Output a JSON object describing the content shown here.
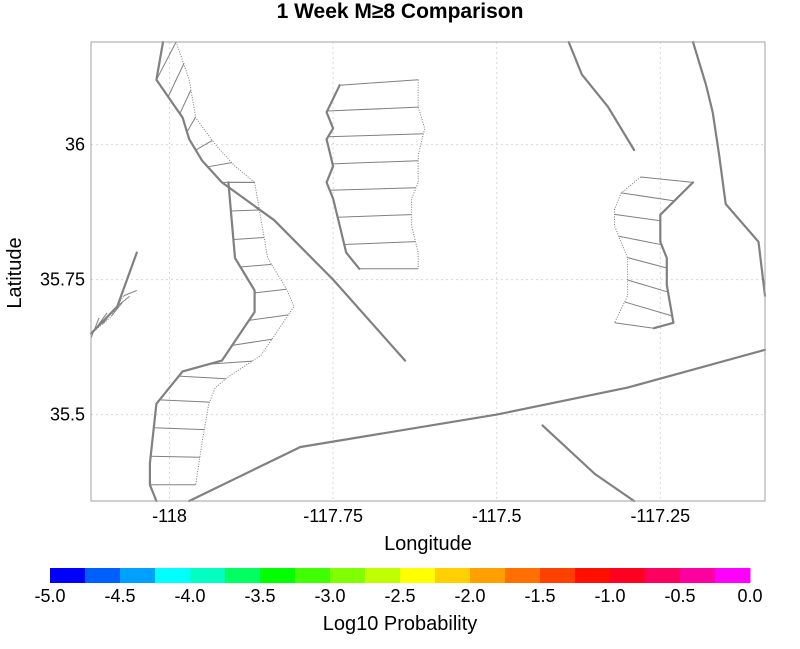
{
  "chart_data": {
    "type": "map",
    "title": "1 Week M≥8 Comparison",
    "xlabel": "Longitude",
    "ylabel": "Latitude",
    "xlim": [
      -118.12,
      -117.09
    ],
    "ylim": [
      35.34,
      36.19
    ],
    "xticks": [
      {
        "value": -118,
        "label": "-118"
      },
      {
        "value": -117.75,
        "label": "-117.75"
      },
      {
        "value": -117.5,
        "label": "-117.5"
      },
      {
        "value": -117.25,
        "label": "-117.25"
      }
    ],
    "yticks": [
      {
        "value": 35.5,
        "label": "35.5"
      },
      {
        "value": 35.75,
        "label": "35.75"
      },
      {
        "value": 36,
        "label": "36"
      }
    ],
    "grid": true,
    "colorbar": {
      "label": "Log10 Probability",
      "min": -5.0,
      "max": 0.0,
      "ticks": [
        "-5.0",
        "-4.5",
        "-4.0",
        "-3.5",
        "-3.0",
        "-2.5",
        "-2.0",
        "-1.5",
        "-1.0",
        "-0.5",
        "0.0"
      ],
      "colors": [
        "#0000ff",
        "#0060ff",
        "#00a0ff",
        "#00ffff",
        "#00ffc0",
        "#00ff60",
        "#00ff00",
        "#40ff00",
        "#80ff00",
        "#c0ff00",
        "#ffff00",
        "#ffd000",
        "#ffa000",
        "#ff7000",
        "#ff4000",
        "#ff1000",
        "#ff0020",
        "#ff0060",
        "#ff00a0",
        "#ff00ff"
      ]
    },
    "fault_traces": [
      {
        "name": "trace-1",
        "points": [
          [
            -118.01,
            36.19
          ],
          [
            -118.02,
            36.12
          ],
          [
            -117.98,
            36.05
          ],
          [
            -117.97,
            36.01
          ],
          [
            -117.95,
            35.97
          ],
          [
            -117.92,
            35.93
          ],
          [
            -117.84,
            35.86
          ],
          [
            -117.75,
            35.75
          ],
          [
            -117.64,
            35.6
          ]
        ]
      },
      {
        "name": "trace-2",
        "points": [
          [
            -117.91,
            35.93
          ],
          [
            -117.9,
            35.79
          ],
          [
            -117.87,
            35.73
          ],
          [
            -117.87,
            35.69
          ],
          [
            -117.92,
            35.6
          ],
          [
            -117.98,
            35.58
          ],
          [
            -118.0,
            35.55
          ],
          [
            -118.02,
            35.52
          ],
          [
            -118.03,
            35.41
          ],
          [
            -118.03,
            35.37
          ],
          [
            -118.02,
            35.34
          ]
        ]
      },
      {
        "name": "trace-3",
        "points": [
          [
            -117.74,
            36.11
          ],
          [
            -117.76,
            36.06
          ],
          [
            -117.75,
            36.03
          ],
          [
            -117.76,
            36.01
          ],
          [
            -117.75,
            35.96
          ],
          [
            -117.76,
            35.93
          ],
          [
            -117.75,
            35.9
          ],
          [
            -117.74,
            35.85
          ],
          [
            -117.73,
            35.8
          ],
          [
            -117.71,
            35.77
          ]
        ]
      },
      {
        "name": "trace-4",
        "points": [
          [
            -117.39,
            36.19
          ],
          [
            -117.37,
            36.13
          ],
          [
            -117.33,
            36.07
          ],
          [
            -117.29,
            35.99
          ]
        ]
      },
      {
        "name": "trace-5",
        "points": [
          [
            -117.2,
            36.19
          ],
          [
            -117.18,
            36.11
          ],
          [
            -117.17,
            36.06
          ],
          [
            -117.16,
            35.98
          ],
          [
            -117.15,
            35.89
          ],
          [
            -117.1,
            35.82
          ],
          [
            -117.05,
            35.72
          ]
        ]
      },
      {
        "name": "trace-6",
        "points": [
          [
            -117.2,
            35.93
          ],
          [
            -117.25,
            35.87
          ],
          [
            -117.25,
            35.82
          ],
          [
            -117.24,
            35.79
          ],
          [
            -117.24,
            35.74
          ],
          [
            -117.23,
            35.67
          ],
          [
            -117.26,
            35.66
          ]
        ]
      },
      {
        "name": "trace-7",
        "points": [
          [
            -117.05,
            35.62
          ],
          [
            -117.3,
            35.55
          ],
          [
            -117.5,
            35.5
          ],
          [
            -117.8,
            35.44
          ],
          [
            -117.97,
            35.34
          ]
        ]
      },
      {
        "name": "trace-8",
        "points": [
          [
            -117.43,
            35.48
          ],
          [
            -117.35,
            35.39
          ],
          [
            -117.29,
            35.34
          ]
        ]
      },
      {
        "name": "trace-9",
        "points": [
          [
            -118.15,
            35.65
          ],
          [
            -118.08,
            35.7
          ],
          [
            -118.05,
            35.8
          ]
        ]
      }
    ],
    "rupture_zones": [
      {
        "name": "zone-west-north",
        "trace": [
          [
            -118.02,
            36.12
          ],
          [
            -117.98,
            36.05
          ],
          [
            -117.97,
            36.01
          ],
          [
            -117.95,
            35.97
          ],
          [
            -117.92,
            35.93
          ]
        ],
        "edge": [
          [
            -117.99,
            36.2
          ],
          [
            -117.97,
            36.12
          ],
          [
            -117.96,
            36.05
          ],
          [
            -117.93,
            36.0
          ],
          [
            -117.9,
            35.96
          ],
          [
            -117.87,
            35.93
          ]
        ],
        "rungs": 6
      },
      {
        "name": "zone-west-south",
        "trace": [
          [
            -117.91,
            35.93
          ],
          [
            -117.9,
            35.79
          ],
          [
            -117.87,
            35.73
          ],
          [
            -117.87,
            35.69
          ],
          [
            -117.92,
            35.6
          ],
          [
            -117.98,
            35.58
          ],
          [
            -118.0,
            35.55
          ],
          [
            -118.02,
            35.52
          ],
          [
            -118.03,
            35.41
          ],
          [
            -118.03,
            35.37
          ]
        ],
        "edge": [
          [
            -117.87,
            35.93
          ],
          [
            -117.85,
            35.79
          ],
          [
            -117.82,
            35.73
          ],
          [
            -117.81,
            35.7
          ],
          [
            -117.86,
            35.61
          ],
          [
            -117.91,
            35.57
          ],
          [
            -117.93,
            35.55
          ],
          [
            -117.94,
            35.52
          ],
          [
            -117.95,
            35.45
          ],
          [
            -117.96,
            35.37
          ]
        ],
        "rungs": 12
      },
      {
        "name": "zone-center",
        "trace": [
          [
            -117.74,
            36.11
          ],
          [
            -117.76,
            36.06
          ],
          [
            -117.75,
            36.03
          ],
          [
            -117.76,
            36.01
          ],
          [
            -117.75,
            35.96
          ],
          [
            -117.76,
            35.93
          ],
          [
            -117.75,
            35.9
          ],
          [
            -117.74,
            35.85
          ],
          [
            -117.73,
            35.8
          ],
          [
            -117.71,
            35.77
          ]
        ],
        "edge": [
          [
            -117.62,
            36.12
          ],
          [
            -117.62,
            36.07
          ],
          [
            -117.61,
            36.03
          ],
          [
            -117.62,
            35.98
          ],
          [
            -117.62,
            35.93
          ],
          [
            -117.63,
            35.9
          ],
          [
            -117.63,
            35.85
          ],
          [
            -117.62,
            35.8
          ],
          [
            -117.62,
            35.77
          ]
        ],
        "rungs": 7
      },
      {
        "name": "zone-east",
        "trace": [
          [
            -117.2,
            35.93
          ],
          [
            -117.25,
            35.87
          ],
          [
            -117.25,
            35.82
          ],
          [
            -117.24,
            35.79
          ],
          [
            -117.24,
            35.74
          ],
          [
            -117.23,
            35.67
          ],
          [
            -117.26,
            35.66
          ]
        ],
        "edge": [
          [
            -117.28,
            35.94
          ],
          [
            -117.31,
            35.91
          ],
          [
            -117.32,
            35.88
          ],
          [
            -117.32,
            35.85
          ],
          [
            -117.31,
            35.82
          ],
          [
            -117.3,
            35.79
          ],
          [
            -117.3,
            35.72
          ],
          [
            -117.32,
            35.67
          ]
        ],
        "rungs": 7
      },
      {
        "name": "zone-far-west",
        "trace": [
          [
            -118.12,
            35.67
          ],
          [
            -118.08,
            35.7
          ],
          [
            -118.05,
            35.73
          ]
        ],
        "edge": [
          [
            -118.15,
            35.63
          ],
          [
            -118.12,
            35.65
          ],
          [
            -118.09,
            35.68
          ],
          [
            -118.07,
            35.72
          ]
        ],
        "rungs": 6
      }
    ]
  }
}
